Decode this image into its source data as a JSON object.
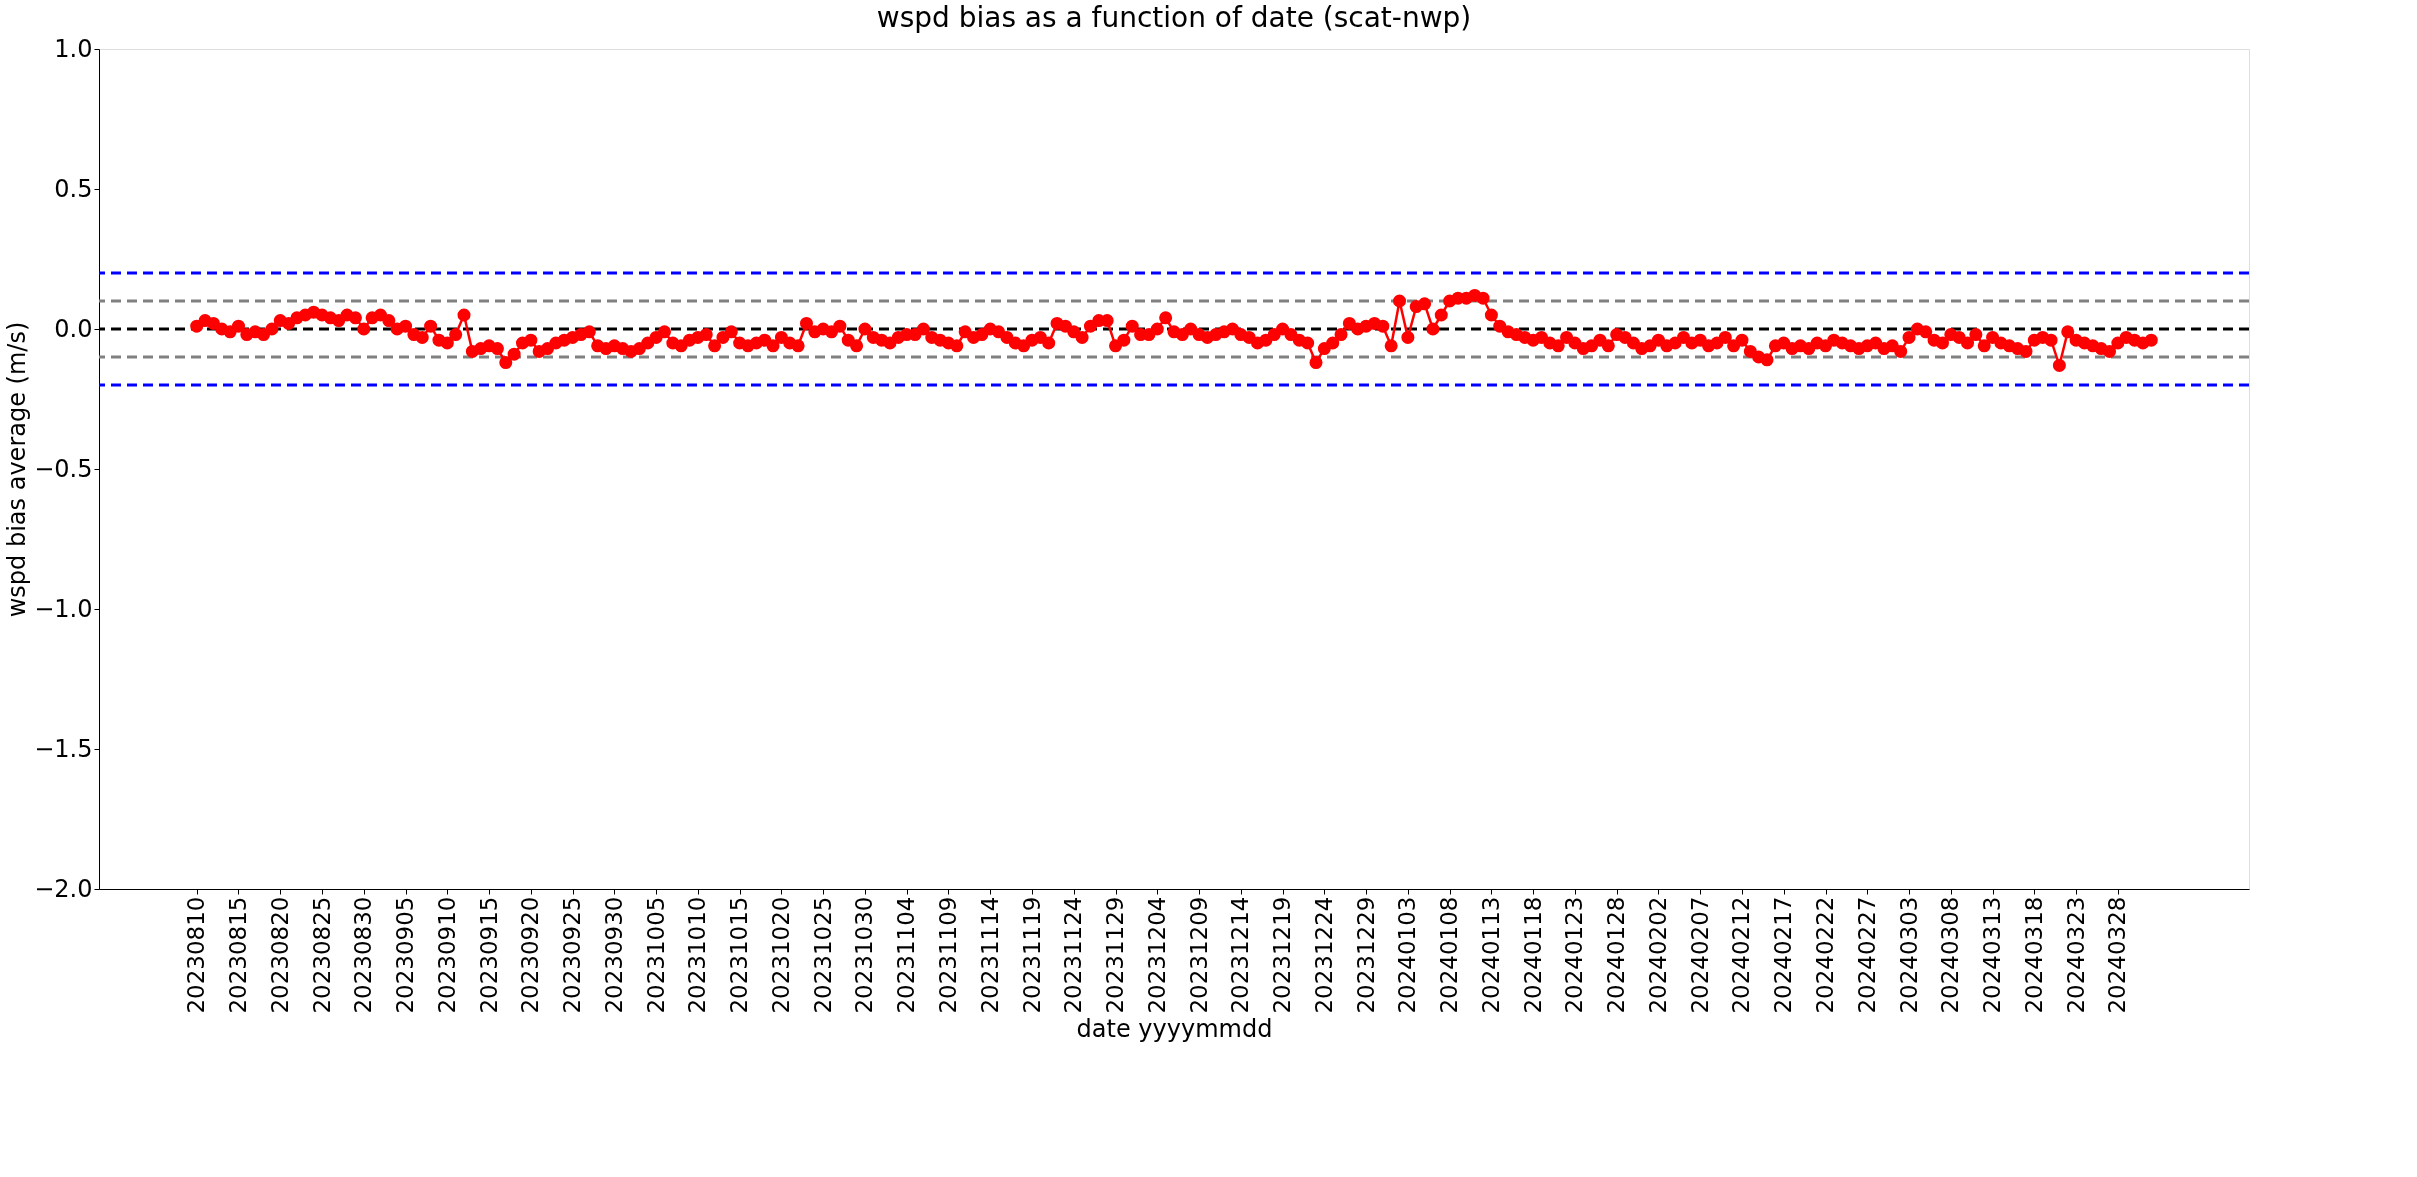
{
  "chart_data": {
    "type": "line",
    "title": "wspd bias as a function of date (scat-nwp)",
    "xlabel": "date yyyymmdd",
    "ylabel": "wspd bias average (m/s)",
    "categories": [
      "20230810",
      null,
      null,
      null,
      null,
      "20230815",
      null,
      null,
      null,
      null,
      "20230820",
      null,
      null,
      null,
      null,
      "20230825",
      null,
      null,
      null,
      null,
      "20230830",
      null,
      null,
      null,
      null,
      "20230905",
      null,
      null,
      null,
      null,
      "20230910",
      null,
      null,
      null,
      null,
      "20230915",
      null,
      null,
      null,
      null,
      "20230920",
      null,
      null,
      null,
      null,
      "20230925",
      null,
      null,
      null,
      null,
      "20230930",
      null,
      null,
      null,
      null,
      "20231005",
      null,
      null,
      null,
      null,
      "20231010",
      null,
      null,
      null,
      null,
      "20231015",
      null,
      null,
      null,
      null,
      "20231020",
      null,
      null,
      null,
      null,
      "20231025",
      null,
      null,
      null,
      null,
      "20231030",
      null,
      null,
      null,
      null,
      "20231104",
      null,
      null,
      null,
      null,
      "20231109",
      null,
      null,
      null,
      null,
      "20231114",
      null,
      null,
      null,
      null,
      "20231119",
      null,
      null,
      null,
      null,
      "20231124",
      null,
      null,
      null,
      null,
      "20231129",
      null,
      null,
      null,
      null,
      "20231204",
      null,
      null,
      null,
      null,
      "20231209",
      null,
      null,
      null,
      null,
      "20231214",
      null,
      null,
      null,
      null,
      "20231219",
      null,
      null,
      null,
      null,
      "20231224",
      null,
      null,
      null,
      null,
      "20231229",
      null,
      null,
      null,
      null,
      "20240103",
      null,
      null,
      null,
      null,
      "20240108",
      null,
      null,
      null,
      null,
      "20240113",
      null,
      null,
      null,
      null,
      "20240118",
      null,
      null,
      null,
      null,
      "20240123",
      null,
      null,
      null,
      null,
      "20240128",
      null,
      null,
      null,
      null,
      "20240202",
      null,
      null,
      null,
      null,
      "20240207",
      null,
      null,
      null,
      null,
      "20240212",
      null,
      null,
      null,
      null,
      "20240217",
      null,
      null,
      null,
      null,
      "20240222",
      null,
      null,
      null,
      null,
      "20240227",
      null,
      null,
      null,
      null,
      "20240303",
      null,
      null,
      null,
      null,
      "20240308",
      null,
      null,
      null,
      null,
      "20240313",
      null,
      null,
      null,
      null,
      "20240318",
      null,
      null,
      null,
      null,
      "20240323",
      null,
      null,
      null,
      null,
      "20240328",
      null,
      null,
      null,
      null
    ],
    "series": [
      {
        "color": "#ff0000",
        "values": [
          0.01,
          0.03,
          0.02,
          0.0,
          -0.01,
          0.01,
          -0.02,
          -0.01,
          -0.02,
          0.0,
          0.03,
          0.02,
          0.04,
          0.05,
          0.06,
          0.05,
          0.04,
          0.03,
          0.05,
          0.04,
          0.0,
          0.04,
          0.05,
          0.03,
          0.0,
          0.01,
          -0.02,
          -0.03,
          0.01,
          -0.04,
          -0.05,
          -0.02,
          0.05,
          -0.08,
          -0.07,
          -0.06,
          -0.07,
          -0.12,
          -0.09,
          -0.05,
          -0.04,
          -0.08,
          -0.07,
          -0.05,
          -0.04,
          -0.03,
          -0.02,
          -0.01,
          -0.06,
          -0.07,
          -0.06,
          -0.07,
          -0.08,
          -0.07,
          -0.05,
          -0.03,
          -0.01,
          -0.05,
          -0.06,
          -0.04,
          -0.03,
          -0.02,
          -0.06,
          -0.03,
          -0.01,
          -0.05,
          -0.06,
          -0.05,
          -0.04,
          -0.06,
          -0.03,
          -0.05,
          -0.06,
          0.02,
          -0.01,
          0.0,
          -0.01,
          0.01,
          -0.04,
          -0.06,
          0.0,
          -0.03,
          -0.04,
          -0.05,
          -0.03,
          -0.02,
          -0.02,
          0.0,
          -0.03,
          -0.04,
          -0.05,
          -0.06,
          -0.01,
          -0.03,
          -0.02,
          0.0,
          -0.01,
          -0.03,
          -0.05,
          -0.06,
          -0.04,
          -0.03,
          -0.05,
          0.02,
          0.01,
          -0.01,
          -0.03,
          0.01,
          0.03,
          0.03,
          -0.06,
          -0.04,
          0.01,
          -0.02,
          -0.02,
          0.0,
          0.04,
          -0.01,
          -0.02,
          0.0,
          -0.02,
          -0.03,
          -0.02,
          -0.01,
          0.0,
          -0.02,
          -0.03,
          -0.05,
          -0.04,
          -0.02,
          0.0,
          -0.02,
          -0.04,
          -0.05,
          -0.12,
          -0.07,
          -0.05,
          -0.02,
          0.02,
          0.0,
          0.01,
          0.02,
          0.01,
          -0.06,
          0.1,
          -0.03,
          0.08,
          0.09,
          0.0,
          0.05,
          0.1,
          0.11,
          0.11,
          0.12,
          0.11,
          0.05,
          0.01,
          -0.01,
          -0.02,
          -0.03,
          -0.04,
          -0.03,
          -0.05,
          -0.06,
          -0.03,
          -0.05,
          -0.07,
          -0.06,
          -0.04,
          -0.06,
          -0.02,
          -0.03,
          -0.05,
          -0.07,
          -0.06,
          -0.04,
          -0.06,
          -0.05,
          -0.03,
          -0.05,
          -0.04,
          -0.06,
          -0.05,
          -0.03,
          -0.06,
          -0.04,
          -0.08,
          -0.1,
          -0.11,
          -0.06,
          -0.05,
          -0.07,
          -0.06,
          -0.07,
          -0.05,
          -0.06,
          -0.04,
          -0.05,
          -0.06,
          -0.07,
          -0.06,
          -0.05,
          -0.07,
          -0.06,
          -0.08,
          -0.03,
          0.0,
          -0.01,
          -0.04,
          -0.05,
          -0.02,
          -0.03,
          -0.05,
          -0.02,
          -0.06,
          -0.03,
          -0.05,
          -0.06,
          -0.07,
          -0.08,
          -0.04,
          -0.03,
          -0.04,
          -0.13,
          -0.01,
          -0.04,
          -0.05,
          -0.06,
          -0.07,
          -0.08,
          -0.05,
          -0.03,
          -0.04,
          -0.05,
          -0.04
        ]
      }
    ],
    "ylim": [
      -2.0,
      1.0
    ],
    "yticks": [
      {
        "value": -2.0,
        "label": "−2.0"
      },
      {
        "value": -1.5,
        "label": "−1.5"
      },
      {
        "value": -1.0,
        "label": "−1.0"
      },
      {
        "value": -0.5,
        "label": "−0.5"
      },
      {
        "value": 0.0,
        "label": "0.0"
      },
      {
        "value": 0.5,
        "label": "0.5"
      },
      {
        "value": 1.0,
        "label": "1.0"
      }
    ],
    "ref_lines": [
      {
        "axis": "y",
        "value": 0.2,
        "color": "#0000ff",
        "line_style": "dashed"
      },
      {
        "axis": "y",
        "value": 0.1,
        "color": "#808080",
        "line_style": "dashed"
      },
      {
        "axis": "y",
        "value": 0.0,
        "color": "#000000",
        "line_style": "dashed"
      },
      {
        "axis": "y",
        "value": -0.1,
        "color": "#808080",
        "line_style": "dashed"
      },
      {
        "axis": "y",
        "value": -0.2,
        "color": "#0000ff",
        "line_style": "dashed"
      }
    ],
    "marker": "circle",
    "line_style": "solid",
    "grid": false
  }
}
